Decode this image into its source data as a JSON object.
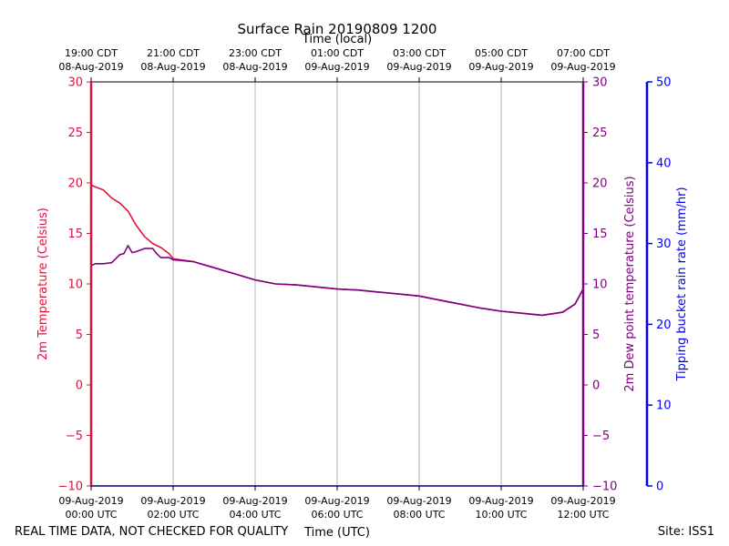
{
  "chart_data": {
    "type": "line",
    "title": "Surface Rain 20190809 1200",
    "top_axis_label": "Time (local)",
    "xlabel": "Time (UTC)",
    "ylabel_left": "2m Temperature (Celsius)",
    "ylabel_right": "2m Dew point temperature (Celsius)",
    "ylabel_far_right": "Tipping bucket rain rate (mm/hr)",
    "ylim": [
      -10,
      30
    ],
    "yticks": [
      -10,
      -5,
      0,
      5,
      10,
      15,
      20,
      25,
      30
    ],
    "ytick_labels": [
      "−10",
      "−5",
      "0",
      "5",
      "10",
      "15",
      "20",
      "25",
      "30"
    ],
    "rain_ylim": [
      0,
      50
    ],
    "rain_yticks": [
      "0",
      "10",
      "20",
      "30",
      "40",
      "50"
    ],
    "xlim": [
      0,
      12
    ],
    "xticks": [
      0,
      2,
      4,
      6,
      8,
      10,
      12
    ],
    "bottom_tick_labels": [
      [
        "09-Aug-2019",
        "00:00 UTC"
      ],
      [
        "09-Aug-2019",
        "02:00 UTC"
      ],
      [
        "09-Aug-2019",
        "04:00 UTC"
      ],
      [
        "09-Aug-2019",
        "06:00 UTC"
      ],
      [
        "09-Aug-2019",
        "08:00 UTC"
      ],
      [
        "09-Aug-2019",
        "10:00 UTC"
      ],
      [
        "09-Aug-2019",
        "12:00 UTC"
      ]
    ],
    "top_tick_labels": [
      [
        "19:00 CDT",
        "08-Aug-2019"
      ],
      [
        "21:00 CDT",
        "08-Aug-2019"
      ],
      [
        "23:00 CDT",
        "08-Aug-2019"
      ],
      [
        "01:00 CDT",
        "09-Aug-2019"
      ],
      [
        "03:00 CDT",
        "09-Aug-2019"
      ],
      [
        "05:00 CDT",
        "09-Aug-2019"
      ],
      [
        "07:00 CDT",
        "09-Aug-2019"
      ]
    ],
    "grid": true,
    "series": [
      {
        "name": "2m Temperature",
        "color": "#dc143c",
        "x": [
          0,
          0.1,
          0.3,
          0.5,
          0.7,
          0.9,
          1.1,
          1.3,
          1.5,
          1.7,
          1.9,
          2.0,
          2.5,
          3.0,
          3.5,
          4.0,
          4.5,
          5.0,
          5.5,
          6.0,
          6.5,
          7.0,
          7.5,
          8.0,
          8.5,
          9.0,
          9.5,
          10.0,
          10.5,
          11.0,
          11.5,
          11.8,
          12.0
        ],
        "y": [
          19.8,
          19.6,
          19.3,
          18.5,
          18.0,
          17.2,
          15.8,
          14.7,
          14.0,
          13.6,
          13.0,
          12.5,
          12.2,
          11.6,
          11.0,
          10.4,
          10.0,
          9.9,
          9.7,
          9.5,
          9.4,
          9.2,
          9.0,
          8.8,
          8.4,
          8.0,
          7.6,
          7.3,
          7.1,
          6.9,
          7.2,
          8.0,
          9.5
        ]
      },
      {
        "name": "2m Dew point temperature",
        "color": "#800080",
        "x": [
          0,
          0.1,
          0.3,
          0.5,
          0.7,
          0.8,
          0.9,
          1.0,
          1.1,
          1.3,
          1.5,
          1.6,
          1.7,
          1.9,
          2.0,
          2.5,
          3.0,
          3.5,
          4.0,
          4.5,
          5.0,
          5.5,
          6.0,
          6.5,
          7.0,
          7.5,
          8.0,
          8.5,
          9.0,
          9.5,
          10.0,
          10.5,
          11.0,
          11.5,
          11.8,
          12.0
        ],
        "y": [
          11.8,
          12.0,
          12.0,
          12.1,
          12.9,
          13.0,
          13.8,
          13.1,
          13.2,
          13.5,
          13.5,
          13.0,
          12.6,
          12.6,
          12.4,
          12.2,
          11.6,
          11.0,
          10.4,
          10.0,
          9.9,
          9.7,
          9.5,
          9.4,
          9.2,
          9.0,
          8.8,
          8.4,
          8.0,
          7.6,
          7.3,
          7.1,
          6.9,
          7.2,
          8.0,
          9.5
        ]
      }
    ]
  },
  "footer": {
    "disclaimer": "REAL TIME DATA, NOT CHECKED FOR QUALITY",
    "site": "Site: ISS1"
  },
  "colors": {
    "temperature": "#dc143c",
    "dewpoint": "#800080",
    "rain": "#0000ff",
    "grid": "#b0b0b0"
  }
}
